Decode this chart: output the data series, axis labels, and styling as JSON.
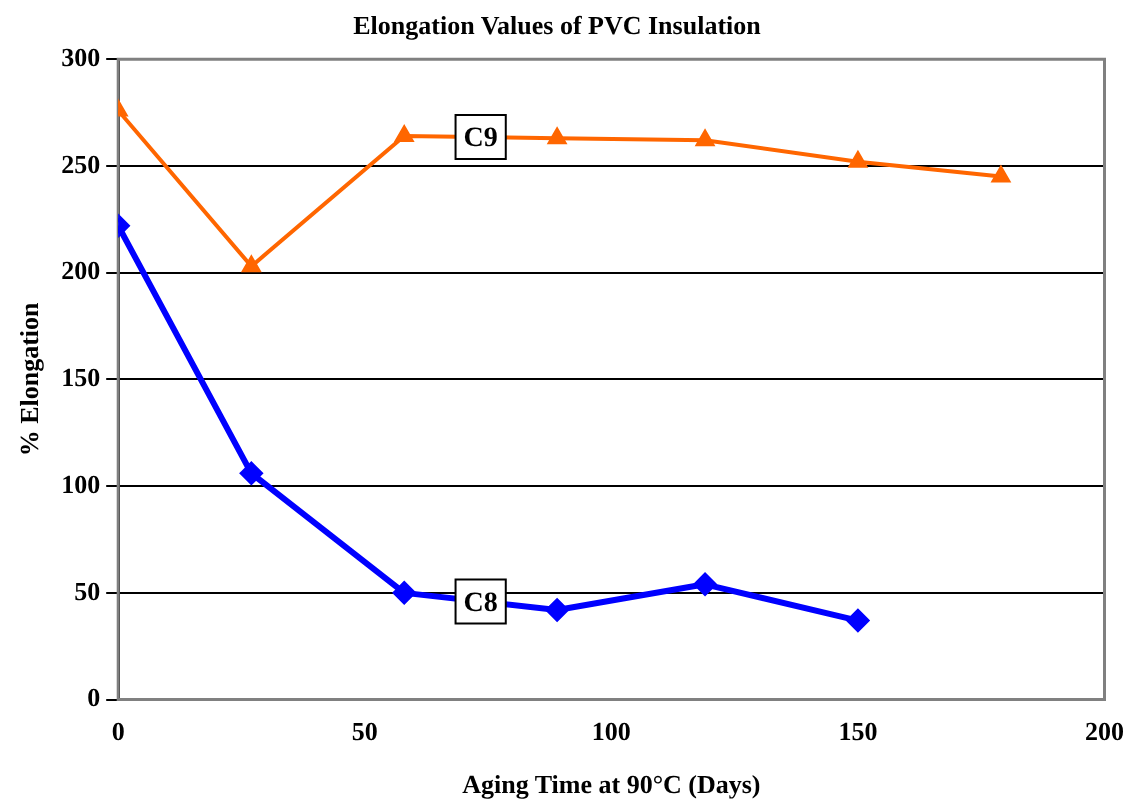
{
  "chart_data": {
    "type": "line",
    "title": "Elongation Values of PVC Insulation",
    "xlabel": "Aging Time at 90°C (Days)",
    "ylabel": "% Elongation",
    "xlim": [
      0,
      200
    ],
    "xticks": [
      0,
      50,
      100,
      150,
      200
    ],
    "ylim": [
      0,
      300
    ],
    "yticks": [
      0,
      50,
      100,
      150,
      200,
      250,
      300
    ],
    "grid": "y",
    "legend": false,
    "series": [
      {
        "name": "C9",
        "color": "#ff6600",
        "marker": "triangle",
        "x": [
          0,
          27,
          58,
          89,
          119,
          150,
          179
        ],
        "values": [
          276,
          203,
          264,
          263,
          262,
          252,
          245
        ]
      },
      {
        "name": "C8",
        "color": "#0000ff",
        "marker": "diamond",
        "x": [
          0,
          27,
          58,
          89,
          119,
          150
        ],
        "values": [
          222,
          106,
          50,
          42,
          54,
          37
        ]
      }
    ]
  }
}
